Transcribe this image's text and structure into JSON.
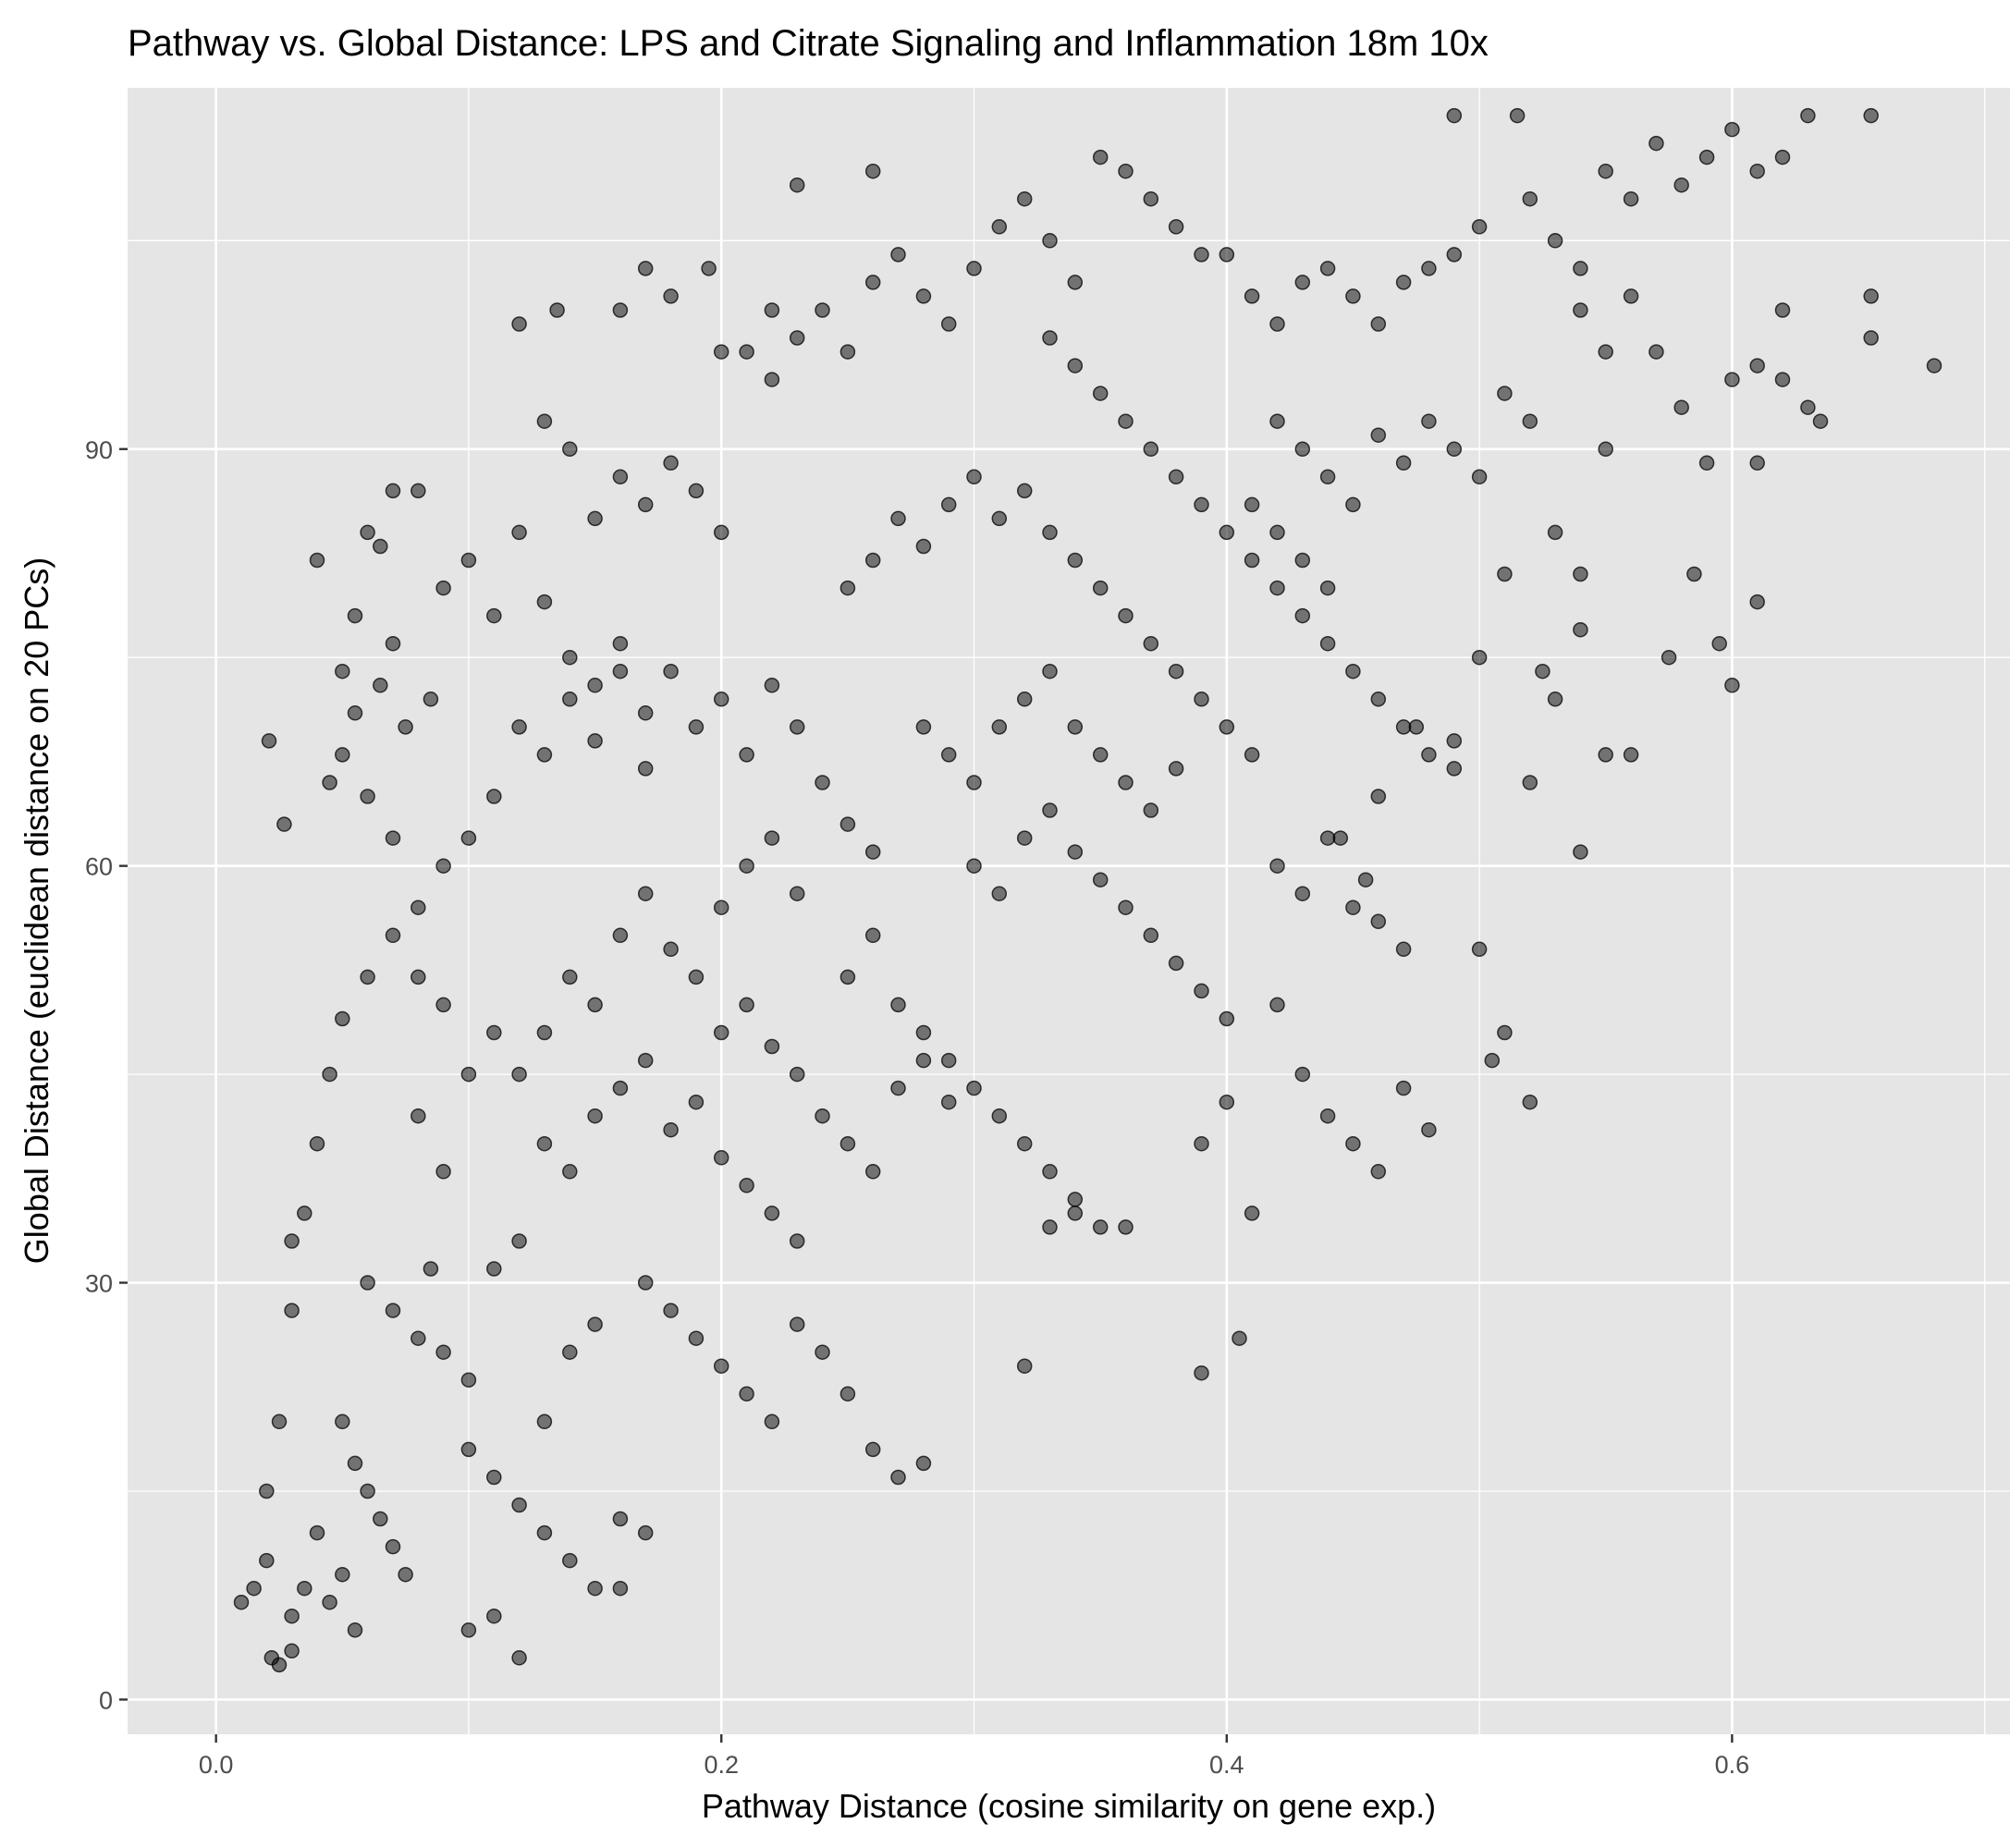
{
  "chart_data": {
    "type": "scatter",
    "title": "Pathway vs. Global Distance: LPS and Citrate Signaling and Inflammation 18m 10x",
    "xlabel": "Pathway Distance (cosine similarity on gene exp.)",
    "ylabel": "Global Distance (euclidean distance on 20 PCs)",
    "xlim": [
      -0.035,
      0.71
    ],
    "ylim": [
      -2.5,
      116
    ],
    "x_ticks": [
      0.0,
      0.2,
      0.4,
      0.6
    ],
    "x_tick_labels": [
      "0.0",
      "0.2",
      "0.4",
      "0.6"
    ],
    "y_ticks": [
      0,
      30,
      60,
      90
    ],
    "y_tick_labels": [
      "0",
      "30",
      "60",
      "90"
    ],
    "grid": true,
    "legend": "none",
    "point_color": "#000000",
    "point_alpha": 0.5,
    "panel_background": "#e5e5e5",
    "grid_color": "#ffffff",
    "points": [
      [
        0.01,
        7
      ],
      [
        0.015,
        8
      ],
      [
        0.02,
        15
      ],
      [
        0.022,
        3
      ],
      [
        0.025,
        2.5
      ],
      [
        0.03,
        3.5
      ],
      [
        0.02,
        10
      ],
      [
        0.025,
        20
      ],
      [
        0.03,
        28
      ],
      [
        0.021,
        69
      ],
      [
        0.027,
        63
      ],
      [
        0.04,
        82
      ],
      [
        0.045,
        66
      ],
      [
        0.05,
        74
      ],
      [
        0.055,
        78
      ],
      [
        0.06,
        84
      ],
      [
        0.065,
        83
      ],
      [
        0.07,
        87
      ],
      [
        0.08,
        87
      ],
      [
        0.07,
        76
      ],
      [
        0.075,
        70
      ],
      [
        0.085,
        72
      ],
      [
        0.09,
        80
      ],
      [
        0.1,
        82
      ],
      [
        0.11,
        78
      ],
      [
        0.12,
        84
      ],
      [
        0.13,
        79
      ],
      [
        0.14,
        75
      ],
      [
        0.15,
        73
      ],
      [
        0.16,
        76
      ],
      [
        0.17,
        71
      ],
      [
        0.18,
        74
      ],
      [
        0.19,
        70
      ],
      [
        0.2,
        72
      ],
      [
        0.21,
        68
      ],
      [
        0.22,
        73
      ],
      [
        0.23,
        70
      ],
      [
        0.24,
        66
      ],
      [
        0.25,
        63
      ],
      [
        0.26,
        61
      ],
      [
        0.12,
        70
      ],
      [
        0.13,
        68
      ],
      [
        0.14,
        72
      ],
      [
        0.15,
        69
      ],
      [
        0.16,
        74
      ],
      [
        0.17,
        67
      ],
      [
        0.11,
        65
      ],
      [
        0.1,
        62
      ],
      [
        0.09,
        60
      ],
      [
        0.08,
        57
      ],
      [
        0.07,
        55
      ],
      [
        0.06,
        52
      ],
      [
        0.05,
        49
      ],
      [
        0.045,
        45
      ],
      [
        0.04,
        40
      ],
      [
        0.035,
        35
      ],
      [
        0.03,
        33
      ],
      [
        0.06,
        30
      ],
      [
        0.07,
        28
      ],
      [
        0.08,
        26
      ],
      [
        0.09,
        25
      ],
      [
        0.1,
        23
      ],
      [
        0.085,
        31
      ],
      [
        0.05,
        20
      ],
      [
        0.055,
        17
      ],
      [
        0.06,
        15
      ],
      [
        0.065,
        13
      ],
      [
        0.07,
        11
      ],
      [
        0.075,
        9
      ],
      [
        0.04,
        12
      ],
      [
        0.035,
        8
      ],
      [
        0.03,
        6
      ],
      [
        0.045,
        7
      ],
      [
        0.05,
        9
      ],
      [
        0.055,
        5
      ],
      [
        0.1,
        18
      ],
      [
        0.11,
        16
      ],
      [
        0.12,
        14
      ],
      [
        0.13,
        12
      ],
      [
        0.14,
        10
      ],
      [
        0.15,
        8
      ],
      [
        0.16,
        13
      ],
      [
        0.17,
        12
      ],
      [
        0.12,
        3
      ],
      [
        0.11,
        6
      ],
      [
        0.1,
        5
      ],
      [
        0.12,
        45
      ],
      [
        0.13,
        48
      ],
      [
        0.14,
        52
      ],
      [
        0.15,
        50
      ],
      [
        0.16,
        55
      ],
      [
        0.17,
        58
      ],
      [
        0.18,
        54
      ],
      [
        0.19,
        52
      ],
      [
        0.2,
        57
      ],
      [
        0.21,
        60
      ],
      [
        0.22,
        62
      ],
      [
        0.23,
        58
      ],
      [
        0.13,
        40
      ],
      [
        0.14,
        38
      ],
      [
        0.15,
        42
      ],
      [
        0.16,
        44
      ],
      [
        0.17,
        46
      ],
      [
        0.18,
        41
      ],
      [
        0.19,
        43
      ],
      [
        0.2,
        39
      ],
      [
        0.21,
        37
      ],
      [
        0.22,
        35
      ],
      [
        0.23,
        33
      ],
      [
        0.17,
        30
      ],
      [
        0.18,
        28
      ],
      [
        0.19,
        26
      ],
      [
        0.2,
        24
      ],
      [
        0.21,
        22
      ],
      [
        0.22,
        20
      ],
      [
        0.23,
        27
      ],
      [
        0.24,
        25
      ],
      [
        0.25,
        22
      ],
      [
        0.26,
        18
      ],
      [
        0.27,
        16
      ],
      [
        0.28,
        17
      ],
      [
        0.25,
        52
      ],
      [
        0.26,
        55
      ],
      [
        0.27,
        50
      ],
      [
        0.28,
        48
      ],
      [
        0.29,
        46
      ],
      [
        0.3,
        44
      ],
      [
        0.31,
        42
      ],
      [
        0.32,
        40
      ],
      [
        0.33,
        38
      ],
      [
        0.34,
        36
      ],
      [
        0.35,
        34
      ],
      [
        0.36,
        34
      ],
      [
        0.3,
        60
      ],
      [
        0.31,
        58
      ],
      [
        0.32,
        62
      ],
      [
        0.33,
        64
      ],
      [
        0.34,
        61
      ],
      [
        0.35,
        59
      ],
      [
        0.36,
        57
      ],
      [
        0.37,
        55
      ],
      [
        0.38,
        53
      ],
      [
        0.39,
        51
      ],
      [
        0.4,
        49
      ],
      [
        0.25,
        80
      ],
      [
        0.26,
        82
      ],
      [
        0.27,
        85
      ],
      [
        0.28,
        83
      ],
      [
        0.29,
        86
      ],
      [
        0.3,
        88
      ],
      [
        0.31,
        85
      ],
      [
        0.32,
        87
      ],
      [
        0.33,
        84
      ],
      [
        0.34,
        82
      ],
      [
        0.35,
        80
      ],
      [
        0.36,
        78
      ],
      [
        0.37,
        76
      ],
      [
        0.38,
        74
      ],
      [
        0.39,
        72
      ],
      [
        0.4,
        70
      ],
      [
        0.41,
        68
      ],
      [
        0.22,
        95
      ],
      [
        0.23,
        98
      ],
      [
        0.24,
        100
      ],
      [
        0.25,
        97
      ],
      [
        0.26,
        102
      ],
      [
        0.27,
        104
      ],
      [
        0.28,
        101
      ],
      [
        0.29,
        99
      ],
      [
        0.3,
        103
      ],
      [
        0.31,
        106
      ],
      [
        0.32,
        108
      ],
      [
        0.33,
        105
      ],
      [
        0.34,
        102
      ],
      [
        0.35,
        111
      ],
      [
        0.36,
        110
      ],
      [
        0.37,
        108
      ],
      [
        0.38,
        106
      ],
      [
        0.39,
        104
      ],
      [
        0.4,
        104
      ],
      [
        0.26,
        110
      ],
      [
        0.23,
        109
      ],
      [
        0.41,
        101
      ],
      [
        0.42,
        99
      ],
      [
        0.43,
        102
      ],
      [
        0.44,
        103
      ],
      [
        0.45,
        101
      ],
      [
        0.46,
        99
      ],
      [
        0.47,
        102
      ],
      [
        0.48,
        103
      ],
      [
        0.49,
        104
      ],
      [
        0.5,
        106
      ],
      [
        0.42,
        92
      ],
      [
        0.43,
        90
      ],
      [
        0.44,
        88
      ],
      [
        0.45,
        86
      ],
      [
        0.46,
        91
      ],
      [
        0.47,
        89
      ],
      [
        0.48,
        92
      ],
      [
        0.49,
        90
      ],
      [
        0.5,
        88
      ],
      [
        0.51,
        94
      ],
      [
        0.52,
        92
      ],
      [
        0.41,
        82
      ],
      [
        0.42,
        80
      ],
      [
        0.43,
        78
      ],
      [
        0.44,
        76
      ],
      [
        0.45,
        74
      ],
      [
        0.46,
        72
      ],
      [
        0.47,
        70
      ],
      [
        0.48,
        68
      ],
      [
        0.49,
        67
      ],
      [
        0.5,
        75
      ],
      [
        0.51,
        81
      ],
      [
        0.42,
        60
      ],
      [
        0.43,
        58
      ],
      [
        0.44,
        62
      ],
      [
        0.45,
        57
      ],
      [
        0.46,
        56
      ],
      [
        0.47,
        54
      ],
      [
        0.42,
        50
      ],
      [
        0.43,
        45
      ],
      [
        0.44,
        42
      ],
      [
        0.45,
        40
      ],
      [
        0.46,
        38
      ],
      [
        0.47,
        44
      ],
      [
        0.48,
        41
      ],
      [
        0.5,
        54
      ],
      [
        0.51,
        48
      ],
      [
        0.52,
        43
      ],
      [
        0.505,
        46
      ],
      [
        0.39,
        40
      ],
      [
        0.4,
        43
      ],
      [
        0.41,
        35
      ],
      [
        0.405,
        26
      ],
      [
        0.39,
        23.5
      ],
      [
        0.32,
        24
      ],
      [
        0.33,
        34
      ],
      [
        0.34,
        35
      ],
      [
        0.52,
        108
      ],
      [
        0.53,
        105
      ],
      [
        0.54,
        103
      ],
      [
        0.55,
        110
      ],
      [
        0.56,
        108
      ],
      [
        0.57,
        112
      ],
      [
        0.58,
        109
      ],
      [
        0.59,
        111
      ],
      [
        0.6,
        113
      ],
      [
        0.61,
        110
      ],
      [
        0.62,
        111
      ],
      [
        0.63,
        114
      ],
      [
        0.655,
        114
      ],
      [
        0.515,
        114
      ],
      [
        0.49,
        114
      ],
      [
        0.54,
        100
      ],
      [
        0.55,
        97
      ],
      [
        0.56,
        101
      ],
      [
        0.57,
        97
      ],
      [
        0.58,
        93
      ],
      [
        0.59,
        89
      ],
      [
        0.6,
        95
      ],
      [
        0.61,
        96
      ],
      [
        0.62,
        95
      ],
      [
        0.63,
        93
      ],
      [
        0.635,
        92
      ],
      [
        0.655,
        101
      ],
      [
        0.655,
        98
      ],
      [
        0.68,
        96
      ],
      [
        0.62,
        100
      ],
      [
        0.52,
        66
      ],
      [
        0.53,
        72
      ],
      [
        0.54,
        61
      ],
      [
        0.55,
        68
      ],
      [
        0.56,
        68
      ],
      [
        0.575,
        75
      ],
      [
        0.585,
        81
      ],
      [
        0.595,
        76
      ],
      [
        0.6,
        73
      ],
      [
        0.61,
        79
      ],
      [
        0.61,
        89
      ],
      [
        0.53,
        84
      ],
      [
        0.54,
        77
      ],
      [
        0.54,
        81
      ],
      [
        0.55,
        90
      ],
      [
        0.525,
        74
      ],
      [
        0.16,
        8
      ],
      [
        0.13,
        20
      ],
      [
        0.14,
        25
      ],
      [
        0.15,
        27
      ],
      [
        0.12,
        33
      ],
      [
        0.11,
        31
      ],
      [
        0.09,
        38
      ],
      [
        0.08,
        42
      ],
      [
        0.1,
        45
      ],
      [
        0.11,
        48
      ],
      [
        0.09,
        50
      ],
      [
        0.08,
        52
      ],
      [
        0.07,
        62
      ],
      [
        0.06,
        65
      ],
      [
        0.05,
        68
      ],
      [
        0.055,
        71
      ],
      [
        0.065,
        73
      ],
      [
        0.15,
        85
      ],
      [
        0.16,
        88
      ],
      [
        0.17,
        86
      ],
      [
        0.18,
        89
      ],
      [
        0.19,
        87
      ],
      [
        0.2,
        84
      ],
      [
        0.14,
        90
      ],
      [
        0.13,
        92
      ],
      [
        0.12,
        99
      ],
      [
        0.135,
        100
      ],
      [
        0.16,
        100
      ],
      [
        0.17,
        103
      ],
      [
        0.18,
        101
      ],
      [
        0.195,
        103
      ],
      [
        0.2,
        97
      ],
      [
        0.21,
        97
      ],
      [
        0.22,
        100
      ],
      [
        0.28,
        70
      ],
      [
        0.29,
        68
      ],
      [
        0.3,
        66
      ],
      [
        0.31,
        70
      ],
      [
        0.32,
        72
      ],
      [
        0.33,
        74
      ],
      [
        0.34,
        70
      ],
      [
        0.35,
        68
      ],
      [
        0.36,
        66
      ],
      [
        0.37,
        64
      ],
      [
        0.38,
        67
      ],
      [
        0.24,
        42
      ],
      [
        0.25,
        40
      ],
      [
        0.26,
        38
      ],
      [
        0.27,
        44
      ],
      [
        0.28,
        46
      ],
      [
        0.29,
        43
      ],
      [
        0.2,
        48
      ],
      [
        0.21,
        50
      ],
      [
        0.22,
        47
      ],
      [
        0.23,
        45
      ],
      [
        0.38,
        88
      ],
      [
        0.37,
        90
      ],
      [
        0.36,
        92
      ],
      [
        0.35,
        94
      ],
      [
        0.34,
        96
      ],
      [
        0.33,
        98
      ],
      [
        0.39,
        86
      ],
      [
        0.4,
        84
      ],
      [
        0.41,
        86
      ],
      [
        0.42,
        84
      ],
      [
        0.43,
        82
      ],
      [
        0.44,
        80
      ],
      [
        0.445,
        62
      ],
      [
        0.455,
        59
      ],
      [
        0.46,
        65
      ],
      [
        0.475,
        70
      ],
      [
        0.49,
        69
      ]
    ]
  }
}
